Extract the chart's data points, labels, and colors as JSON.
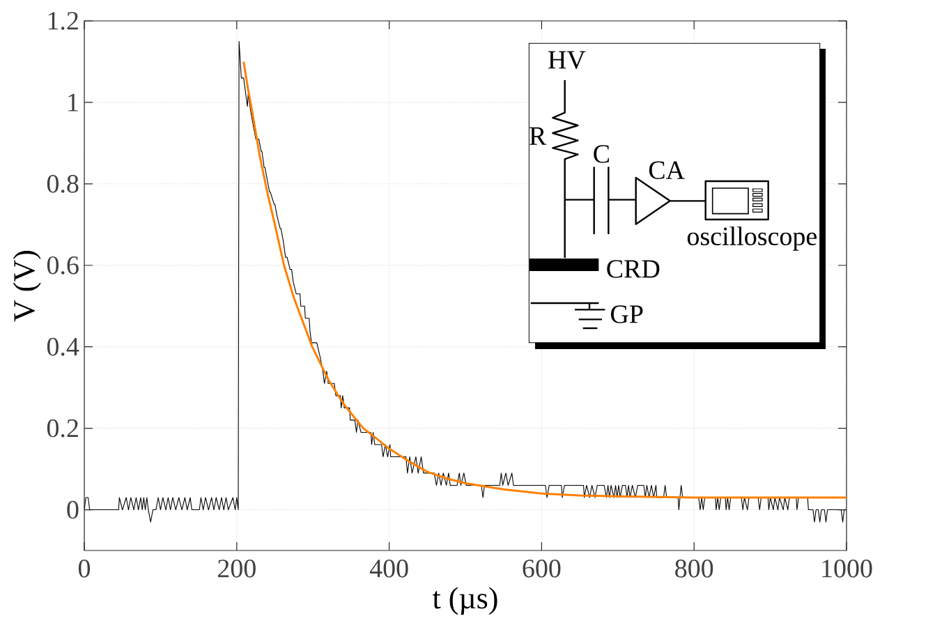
{
  "chart_data": {
    "type": "line",
    "xlabel": "t (µs)",
    "ylabel": "V (V)",
    "xlim": [
      0,
      1000
    ],
    "ylim": [
      -0.1,
      1.2
    ],
    "xticks": [
      0,
      200,
      400,
      600,
      800,
      1000
    ],
    "yticks": [
      0,
      0.2,
      0.4,
      0.6,
      0.8,
      1,
      1.2
    ],
    "grid": true,
    "line_style": "solid",
    "annotations": [
      "HV",
      "R",
      "C",
      "CA",
      "oscilloscope",
      "CRD",
      "GP"
    ],
    "series": [
      {
        "color": "#000000",
        "x": [
          0,
          2,
          5,
          7,
          45,
          46,
          50,
          55,
          58,
          61,
          65,
          68,
          71,
          74,
          76,
          78,
          80,
          82,
          84,
          87,
          90,
          94,
          97,
          100,
          103,
          107,
          110,
          113,
          116,
          120,
          124,
          128,
          132,
          135,
          139,
          141,
          151,
          153,
          156,
          159,
          163,
          167,
          170,
          173,
          177,
          180,
          183,
          186,
          189,
          195,
          198,
          200,
          202,
          203,
          206,
          209,
          214,
          215,
          219,
          225,
          229,
          232,
          233,
          236,
          237,
          240,
          243,
          244,
          249,
          250,
          253,
          257,
          258,
          261,
          264,
          266,
          270,
          272,
          274,
          278,
          283,
          284,
          289,
          290,
          295,
          296,
          298,
          305,
          310,
          313,
          315,
          318,
          320,
          328,
          330,
          336,
          337,
          339,
          341,
          348,
          349,
          355,
          357,
          359,
          363,
          376,
          377,
          379,
          381,
          390,
          392,
          395,
          398,
          401,
          402,
          422,
          424,
          427,
          430,
          435,
          438,
          442,
          445,
          459,
          462,
          465,
          468,
          471,
          475,
          478,
          480,
          489,
          492,
          494,
          498,
          501,
          521,
          523,
          525,
          545,
          547,
          549,
          553,
          556,
          561,
          563,
          605,
          607,
          610,
          626,
          627,
          630,
          655,
          656,
          659,
          663,
          666,
          670,
          673,
          682,
          685,
          687,
          689,
          691,
          695,
          697,
          699,
          701,
          703,
          706,
          710,
          712,
          714,
          716,
          719,
          723,
          726,
          734,
          736,
          738,
          741,
          744,
          747,
          750,
          751,
          760,
          762,
          764,
          779,
          780,
          783,
          785,
          806,
          808,
          810,
          812,
          814,
          828,
          829,
          831,
          833,
          835,
          841,
          842,
          844,
          846,
          848,
          862,
          864,
          866,
          870,
          872,
          884,
          886,
          888,
          897,
          898,
          900,
          904,
          906,
          910,
          912,
          917,
          919,
          923,
          925,
          934,
          935,
          937,
          949,
          950,
          956,
          958,
          960,
          963,
          965,
          967,
          971,
          973,
          975,
          993,
          995,
          997,
          1000
        ],
        "values": [
          0,
          0.03,
          0.03,
          0,
          0,
          0.03,
          0,
          0.03,
          0,
          0.03,
          0,
          0.03,
          0,
          0.03,
          0,
          0.03,
          0,
          0.03,
          0,
          -0.03,
          0,
          0,
          0.03,
          0,
          0.03,
          0,
          0.03,
          0,
          0.03,
          0,
          0.03,
          0,
          0.03,
          0,
          0.03,
          0,
          0,
          0.03,
          0,
          0.03,
          0,
          0.03,
          0,
          0.03,
          0,
          0.03,
          0,
          0.03,
          0,
          0.03,
          0,
          0.03,
          0,
          1.15,
          1.06,
          1.06,
          0.99,
          1.02,
          0.97,
          0.91,
          0.91,
          0.88,
          0.88,
          0.84,
          0.84,
          0.81,
          0.78,
          0.78,
          0.75,
          0.75,
          0.72,
          0.69,
          0.69,
          0.66,
          0.62,
          0.62,
          0.59,
          0.59,
          0.56,
          0.53,
          0.53,
          0.5,
          0.5,
          0.47,
          0.47,
          0.44,
          0.41,
          0.41,
          0.37,
          0.34,
          0.31,
          0.34,
          0.31,
          0.31,
          0.28,
          0.28,
          0.25,
          0.28,
          0.25,
          0.25,
          0.22,
          0.22,
          0.19,
          0.22,
          0.19,
          0.19,
          0.16,
          0.19,
          0.16,
          0.16,
          0.13,
          0.16,
          0.13,
          0.16,
          0.13,
          0.13,
          0.09,
          0.13,
          0.09,
          0.13,
          0.09,
          0.13,
          0.09,
          0.09,
          0.06,
          0.09,
          0.06,
          0.09,
          0.06,
          0.09,
          0.06,
          0.06,
          0.09,
          0.06,
          0.09,
          0.06,
          0.06,
          0.03,
          0.06,
          0.06,
          0.09,
          0.06,
          0.09,
          0.06,
          0.09,
          0.06,
          0.06,
          0.03,
          0.06,
          0.06,
          0.03,
          0.06,
          0.06,
          0.03,
          0.06,
          0.03,
          0.06,
          0.03,
          0.06,
          0.06,
          0.03,
          0.06,
          0.03,
          0.06,
          0.03,
          0.06,
          0.03,
          0.06,
          0.03,
          0.06,
          0.06,
          0.03,
          0.06,
          0.03,
          0.06,
          0.03,
          0.06,
          0.06,
          0.03,
          0.06,
          0.03,
          0.06,
          0.03,
          0.06,
          0.03,
          0.03,
          0.06,
          0.03,
          0.03,
          0,
          0.06,
          0.03,
          0.03,
          0,
          0.03,
          0,
          0.03,
          0.03,
          0,
          0.03,
          0,
          0.03,
          0.03,
          0,
          0.03,
          0,
          0.03,
          0.03,
          0,
          0.03,
          0,
          0.03,
          0.03,
          0,
          0.03,
          0.03,
          0,
          0.03,
          0,
          0.03,
          0,
          0.03,
          0,
          0.03,
          0,
          0.03,
          0.03,
          0,
          0.03,
          0.03,
          0,
          0,
          -0.03,
          0,
          0,
          -0.03,
          0,
          0,
          -0.03,
          0,
          0,
          -0.03,
          0,
          0
        ]
      },
      {
        "color": "#ff8000",
        "x": [
          209,
          215,
          220,
          230,
          240,
          250,
          262,
          275,
          287,
          299,
          320,
          340,
          366,
          380,
          400,
          425,
          450,
          475,
          500,
          550,
          600,
          650,
          700,
          800,
          900,
          1000
        ],
        "values": [
          1.1,
          1.03,
          0.98,
          0.87,
          0.78,
          0.7,
          0.6,
          0.52,
          0.46,
          0.4,
          0.32,
          0.26,
          0.2,
          0.18,
          0.15,
          0.12,
          0.093,
          0.077,
          0.065,
          0.05,
          0.04,
          0.035,
          0.033,
          0.03,
          0.03,
          0.03
        ]
      }
    ]
  }
}
